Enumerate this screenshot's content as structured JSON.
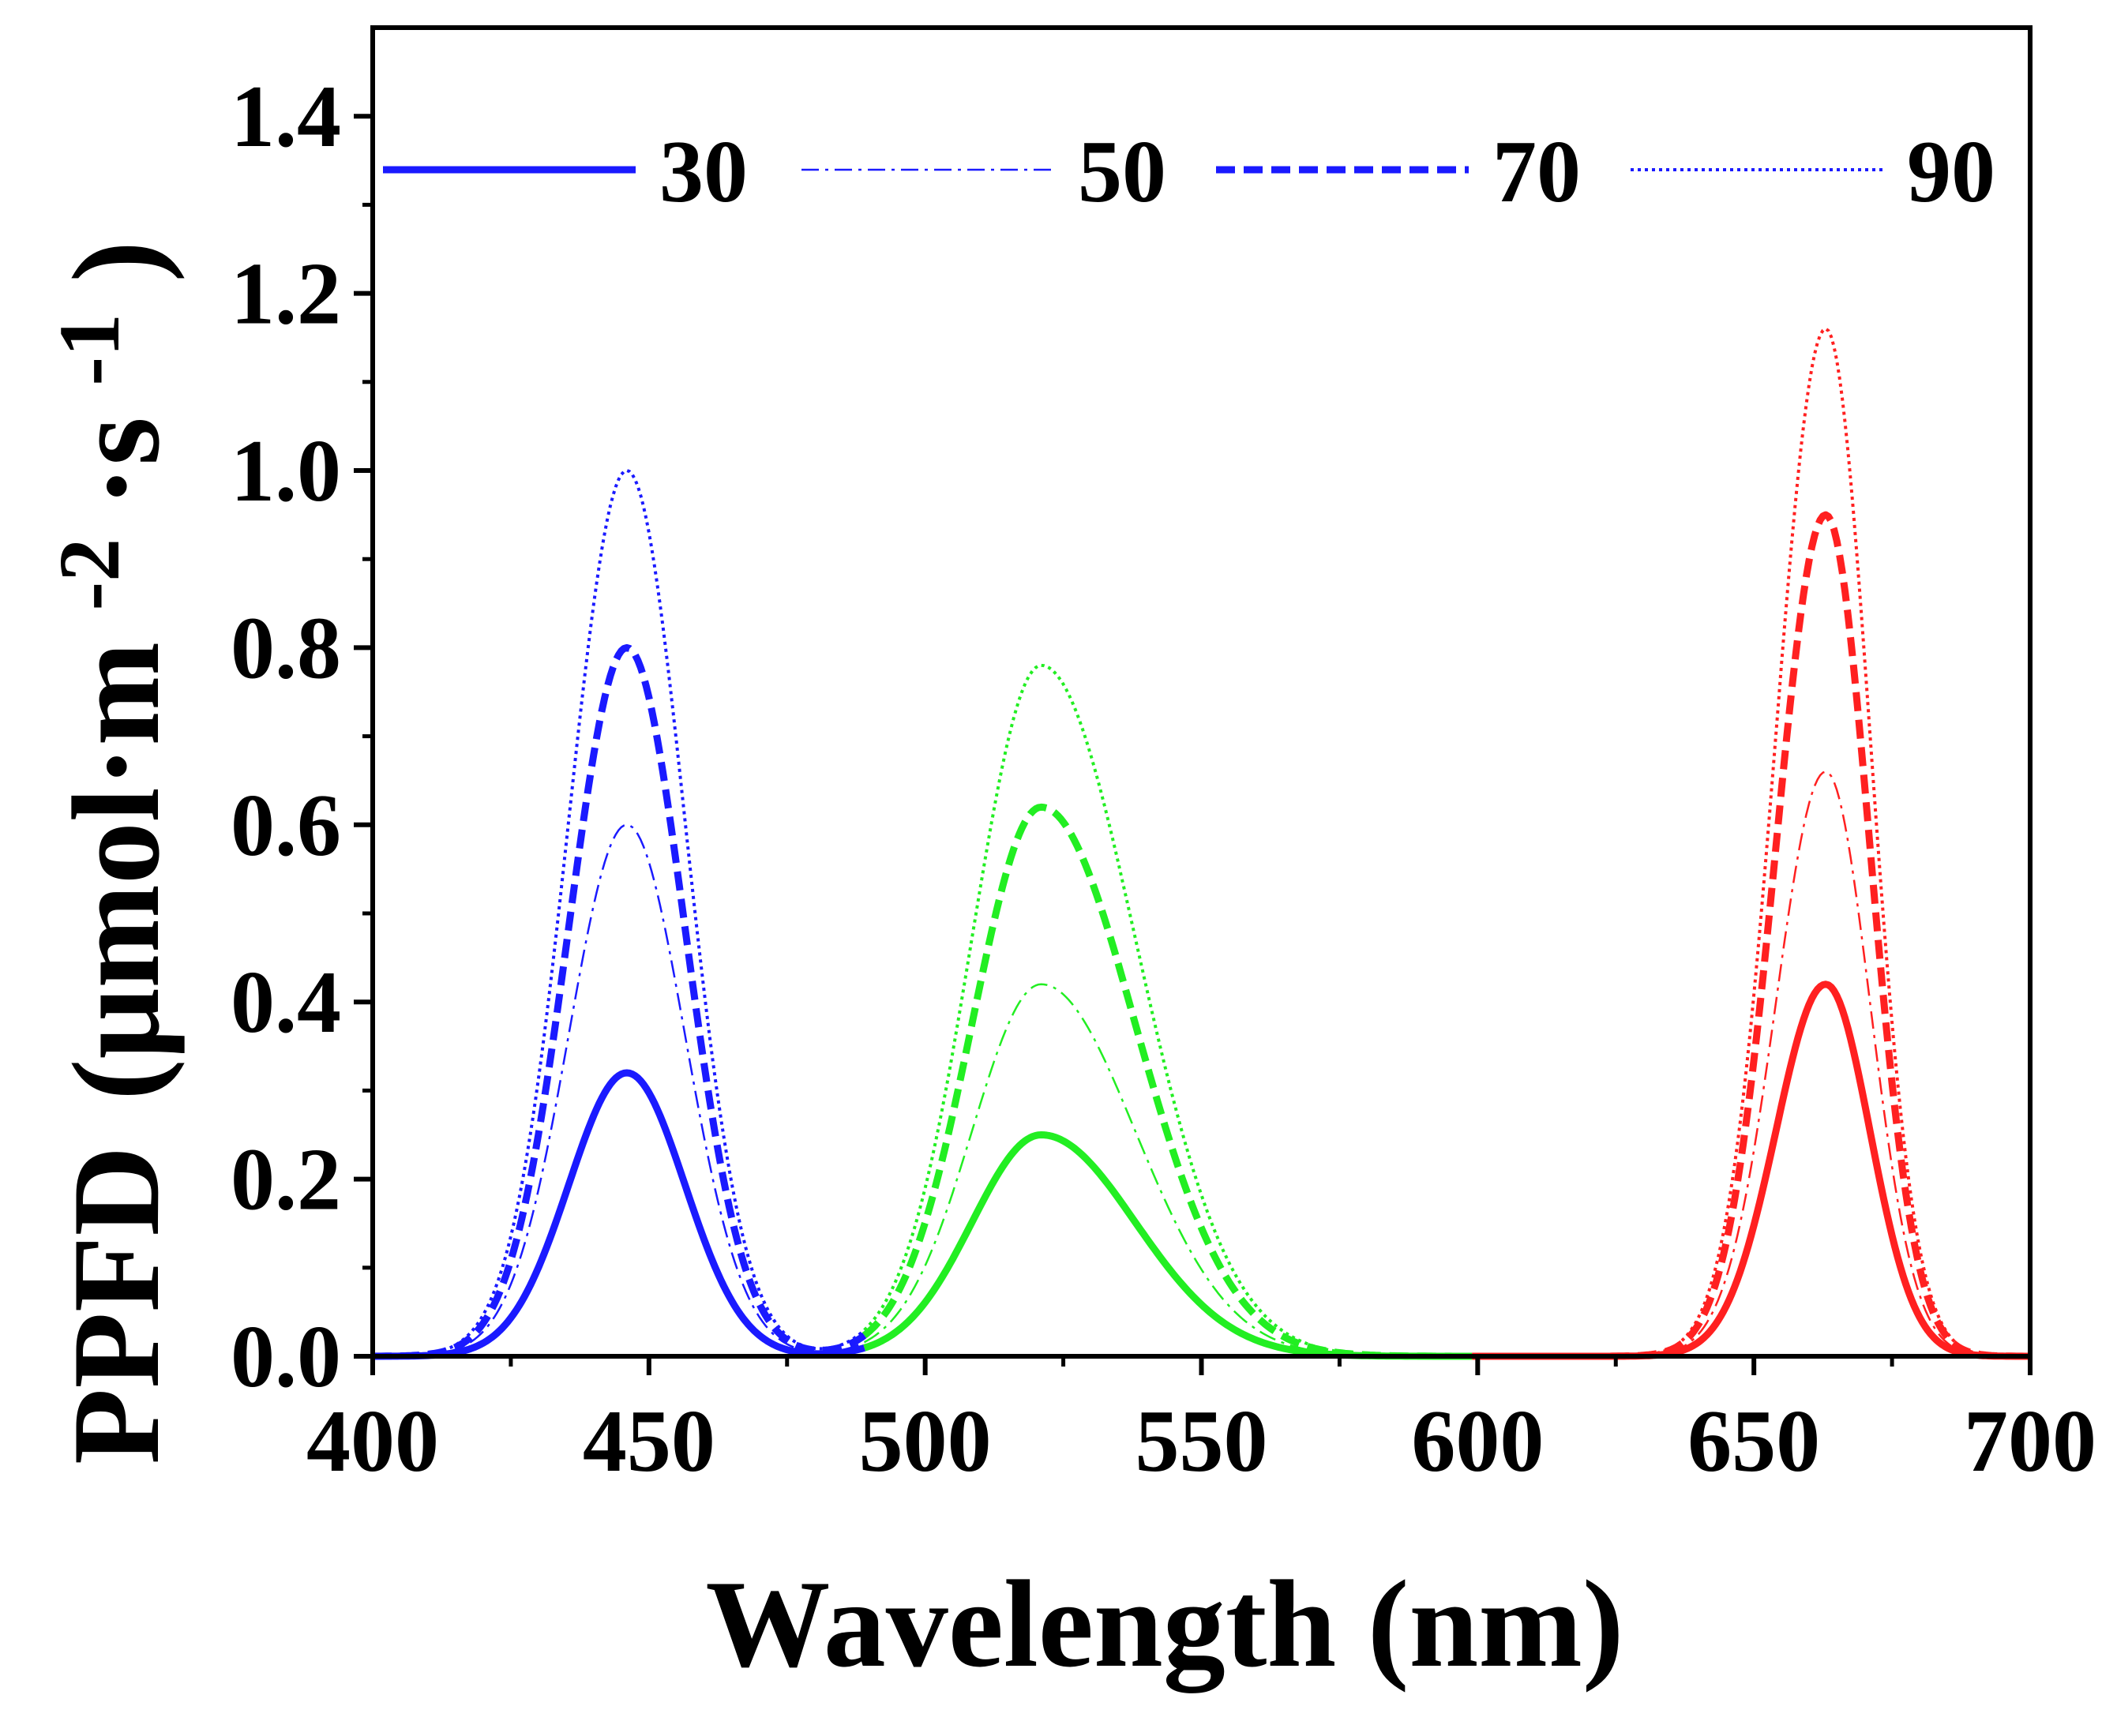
{
  "chart_data": {
    "type": "line",
    "xlabel": "Wavelength (nm)",
    "ylabel": "PPFD (μmol·m⁻²·s⁻¹)",
    "ylabel_parts": {
      "main": "PPFD",
      "unit": "(μmol·m",
      "exp1": "-2",
      "mid": "·s",
      "exp2": "-1",
      "close": ")"
    },
    "xlim": [
      400,
      700
    ],
    "ylim": [
      0,
      1.5
    ],
    "xticks": [
      "400",
      "450",
      "500",
      "550",
      "600",
      "650",
      "700"
    ],
    "yticks": [
      "0.0",
      "0.2",
      "0.4",
      "0.6",
      "0.8",
      "1.0",
      "1.2",
      "1.4"
    ],
    "legend_position": "top",
    "segments": [
      {
        "name": "blue",
        "color": "#1a1aff",
        "range": [
          400,
          489
        ],
        "center": 446,
        "sigma_left": 10.5,
        "sigma_right": 10.5
      },
      {
        "name": "green",
        "color": "#22ee22",
        "range": [
          489,
          599
        ],
        "center": 521,
        "sigma_left": 12.5,
        "sigma_right": 17
      },
      {
        "name": "red",
        "color": "#ff2020",
        "range": [
          599,
          700
        ],
        "center": 663,
        "sigma_left": 9,
        "sigma_right": 8
      }
    ],
    "series": [
      {
        "name": "30",
        "style": "solid",
        "peaks": {
          "blue": 0.32,
          "green": 0.25,
          "red": 0.42
        }
      },
      {
        "name": "50",
        "style": "dashdot",
        "peaks": {
          "blue": 0.6,
          "green": 0.42,
          "red": 0.66
        }
      },
      {
        "name": "70",
        "style": "dash",
        "peaks": {
          "blue": 0.8,
          "green": 0.62,
          "red": 0.95
        }
      },
      {
        "name": "90",
        "style": "dot",
        "peaks": {
          "blue": 1.0,
          "green": 0.78,
          "red": 1.16
        }
      }
    ],
    "legend_color": "#1a1aff"
  }
}
